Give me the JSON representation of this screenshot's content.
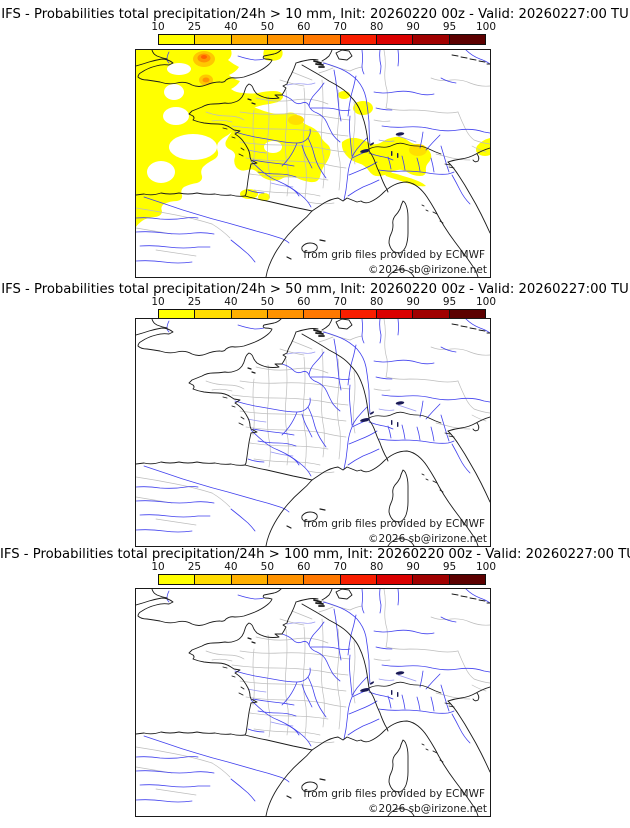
{
  "colorbar": {
    "tick_labels": [
      "10",
      "25",
      "40",
      "50",
      "60",
      "70",
      "80",
      "90",
      "95",
      "100"
    ],
    "segment_colors": [
      "#ffff00",
      "#ffdc00",
      "#ffb000",
      "#ff9200",
      "#ff7800",
      "#f81e00",
      "#da0000",
      "#a00000",
      "#5c0000"
    ]
  },
  "panels": [
    {
      "title": "IFS - Probabilities total precipitation/24h > 10 mm, Init: 20260220 00z - Valid: 20260227:00 TU",
      "threshold_mm": 10,
      "has_precip_overlay": true,
      "credits": {
        "source": "from grib files provided by ECMWF",
        "copyright": "©2026 sb@irizone.net"
      }
    },
    {
      "title": "IFS - Probabilities total precipitation/24h > 50 mm, Init: 20260220 00z - Valid: 20260227:00 TU",
      "threshold_mm": 50,
      "has_precip_overlay": false,
      "credits": {
        "source": "from grib files provided by ECMWF",
        "copyright": "©2026 sb@irizone.net"
      }
    },
    {
      "title": "IFS - Probabilities total precipitation/24h > 100 mm, Init: 20260220 00z - Valid: 20260227:00 TU",
      "threshold_mm": 100,
      "has_precip_overlay": false,
      "credits": {
        "source": "from grib files provided by ECMWF",
        "copyright": "©2026 sb@irizone.net"
      }
    }
  ],
  "map_style": {
    "sea_color": "#ffffff",
    "land_color": "#ffffff",
    "coast_color": "#1b1b1b",
    "admin_border_color": "#bdbdbd",
    "river_color": "#4040ee",
    "lake_color": "#1a1a55",
    "probability_fill_low": "#ffff00",
    "probability_fill_mid": "#ffe000",
    "probability_fill_40": "#ffc800",
    "probability_fill_60": "#ff9400",
    "probability_fill_70": "#ff5f00"
  }
}
